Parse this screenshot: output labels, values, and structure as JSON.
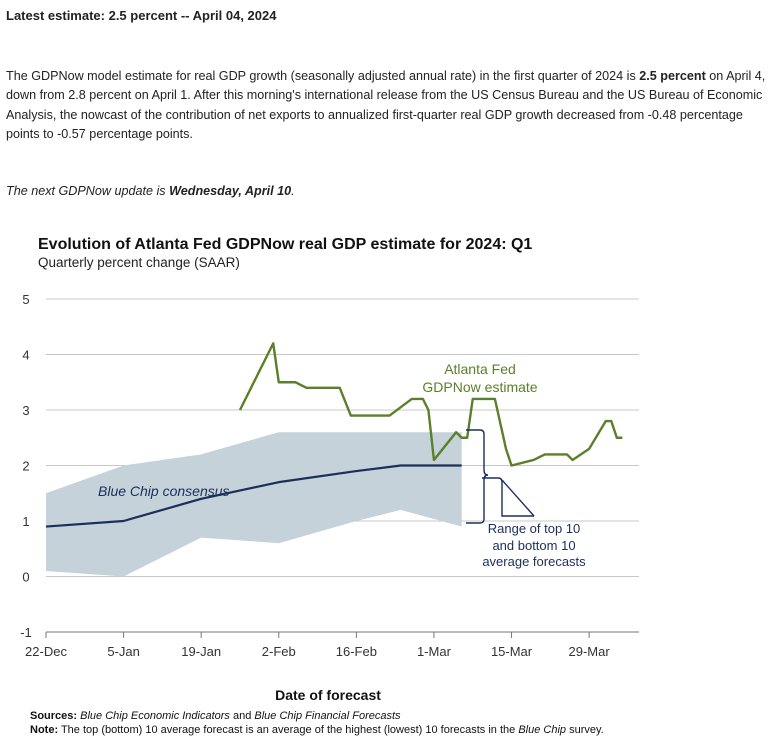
{
  "header": {
    "latest_estimate": "Latest estimate: 2.5 percent -- April 04, 2024"
  },
  "summary": {
    "part1": "The GDPNow model estimate for real GDP growth (seasonally adjusted annual rate) in the first quarter of 2024 is ",
    "bold1": "2.5 percent",
    "part2": " on April 4, down from 2.8 percent on April 1. After this morning's international release from the US Census Bureau and the US Bureau of Economic Analysis, the nowcast of the contribution of net exports to annualized first-quarter real GDP growth decreased from -0.48 percentage points to -0.57 percentage points."
  },
  "next_update": {
    "prefix": "The next GDPNow update is ",
    "date": "Wednesday, April 10",
    "suffix": "."
  },
  "chart_data": {
    "type": "line",
    "title": "Evolution of Atlanta Fed GDPNow real GDP estimate for 2024: Q1",
    "subtitle": "Quarterly percent change (SAAR)",
    "xlabel": "Date of forecast",
    "ylabel": "",
    "ylim": [
      -1,
      5
    ],
    "yticks": [
      -1,
      0,
      1,
      2,
      3,
      4,
      5
    ],
    "x_range": [
      "2023-12-22",
      "2024-04-07"
    ],
    "xticks": [
      {
        "date": "2023-12-22",
        "label": "22-Dec"
      },
      {
        "date": "2024-01-05",
        "label": "5-Jan"
      },
      {
        "date": "2024-01-19",
        "label": "19-Jan"
      },
      {
        "date": "2024-02-02",
        "label": "2-Feb"
      },
      {
        "date": "2024-02-16",
        "label": "16-Feb"
      },
      {
        "date": "2024-03-01",
        "label": "1-Mar"
      },
      {
        "date": "2024-03-15",
        "label": "15-Mar"
      },
      {
        "date": "2024-03-29",
        "label": "29-Mar"
      }
    ],
    "grid": true,
    "series": [
      {
        "name": "Atlanta Fed GDPNow estimate",
        "color": "#5b7f2a",
        "points": [
          [
            "2024-01-26",
            3.0
          ],
          [
            "2024-02-01",
            4.2
          ],
          [
            "2024-02-02",
            3.5
          ],
          [
            "2024-02-05",
            3.5
          ],
          [
            "2024-02-07",
            3.4
          ],
          [
            "2024-02-13",
            3.4
          ],
          [
            "2024-02-15",
            2.9
          ],
          [
            "2024-02-22",
            2.9
          ],
          [
            "2024-02-26",
            3.2
          ],
          [
            "2024-02-28",
            3.2
          ],
          [
            "2024-02-29",
            3.0
          ],
          [
            "2024-03-01",
            2.1
          ],
          [
            "2024-03-05",
            2.6
          ],
          [
            "2024-03-06",
            2.5
          ],
          [
            "2024-03-07",
            2.5
          ],
          [
            "2024-03-08",
            3.2
          ],
          [
            "2024-03-12",
            3.2
          ],
          [
            "2024-03-14",
            2.3
          ],
          [
            "2024-03-15",
            2.0
          ],
          [
            "2024-03-19",
            2.1
          ],
          [
            "2024-03-21",
            2.2
          ],
          [
            "2024-03-25",
            2.2
          ],
          [
            "2024-03-26",
            2.1
          ],
          [
            "2024-03-29",
            2.3
          ],
          [
            "2024-04-01",
            2.8
          ],
          [
            "2024-04-02",
            2.8
          ],
          [
            "2024-04-03",
            2.5
          ],
          [
            "2024-04-04",
            2.5
          ]
        ]
      },
      {
        "name": "Blue Chip consensus",
        "color": "#1b2f5a",
        "points": [
          [
            "2023-12-22",
            0.9
          ],
          [
            "2024-01-05",
            1.0
          ],
          [
            "2024-01-19",
            1.4
          ],
          [
            "2024-02-02",
            1.7
          ],
          [
            "2024-02-16",
            1.9
          ],
          [
            "2024-02-24",
            2.0
          ],
          [
            "2024-03-06",
            2.0
          ]
        ]
      }
    ],
    "band": {
      "name": "Range of top 10 and bottom 10 average forecasts",
      "color": "#c5d2da",
      "upper": [
        [
          "2023-12-22",
          1.5
        ],
        [
          "2024-01-05",
          2.0
        ],
        [
          "2024-01-19",
          2.2
        ],
        [
          "2024-02-02",
          2.6
        ],
        [
          "2024-02-16",
          2.6
        ],
        [
          "2024-03-06",
          2.6
        ]
      ],
      "lower": [
        [
          "2023-12-22",
          0.1
        ],
        [
          "2024-01-05",
          0.0
        ],
        [
          "2024-01-19",
          0.7
        ],
        [
          "2024-02-02",
          0.6
        ],
        [
          "2024-02-16",
          1.0
        ],
        [
          "2024-02-24",
          1.2
        ],
        [
          "2024-03-06",
          0.9
        ]
      ]
    },
    "annotations": {
      "gdpnow_line1": "Atlanta Fed",
      "gdpnow_line2": "GDPNow estimate",
      "bluechip": "Blue Chip consensus",
      "range_line1": "Range of top 10",
      "range_line2": "and bottom 10",
      "range_line3": "average forecasts"
    }
  },
  "footnote": {
    "sources_label": "Sources:",
    "sources_a": "Blue Chip Economic Indicators",
    "sources_and": " and ",
    "sources_b": "Blue Chip Financial Forecasts",
    "note_label": "Note:",
    "note_a": " The top (bottom) 10 average forecast is an average of the highest (lowest) 10 forecasts in the ",
    "note_b": "Blue Chip",
    "note_c": " survey."
  }
}
